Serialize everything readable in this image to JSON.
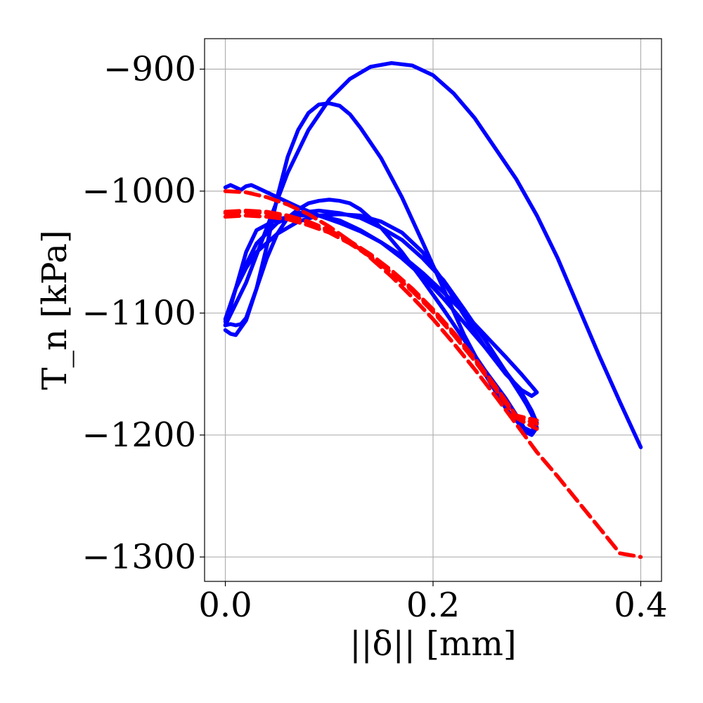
{
  "chart_data": {
    "type": "line",
    "title": "",
    "xlabel": "||δ|| [mm]",
    "ylabel": "T_n [kPa]",
    "xlim": [
      -0.02,
      0.42
    ],
    "ylim": [
      -1320,
      -875
    ],
    "xticks": [
      0.0,
      0.2,
      0.4
    ],
    "xtick_labels": [
      "0.0",
      "0.2",
      "0.4"
    ],
    "yticks": [
      -900,
      -1000,
      -1100,
      -1200,
      -1300
    ],
    "ytick_labels": [
      "−900",
      "−1000",
      "−1100",
      "−1200",
      "−1300"
    ],
    "grid": true,
    "legend": "none",
    "colors": {
      "model": "#0000ff",
      "reference": "#ff0000"
    },
    "series": [
      {
        "name": "model-response-1",
        "color": "#0000ff",
        "style": "solid",
        "x": [
          0.0,
          0.005,
          0.01,
          0.015,
          0.02,
          0.025,
          0.03,
          0.05,
          0.07,
          0.09,
          0.11,
          0.13,
          0.15,
          0.17,
          0.19,
          0.21,
          0.23,
          0.25,
          0.27,
          0.285,
          0.295,
          0.3,
          0.295,
          0.285,
          0.27,
          0.25,
          0.23,
          0.21,
          0.19,
          0.17,
          0.15,
          0.13,
          0.11,
          0.09,
          0.07,
          0.05,
          0.03,
          0.02,
          0.01,
          0.005,
          0.0
        ],
        "y": [
          -997,
          -995,
          -997,
          -999,
          -996,
          -995,
          -997,
          -1005,
          -1013,
          -1020,
          -1026,
          -1033,
          -1042,
          -1053,
          -1067,
          -1083,
          -1100,
          -1118,
          -1136,
          -1150,
          -1160,
          -1165,
          -1168,
          -1163,
          -1150,
          -1128,
          -1102,
          -1074,
          -1050,
          -1034,
          -1025,
          -1020,
          -1019,
          -1020,
          -1025,
          -1035,
          -1050,
          -1063,
          -1080,
          -1093,
          -1107
        ]
      },
      {
        "name": "model-response-2",
        "color": "#0000ff",
        "style": "solid",
        "x": [
          0.0,
          0.005,
          0.01,
          0.02,
          0.03,
          0.04,
          0.05,
          0.06,
          0.07,
          0.08,
          0.09,
          0.1,
          0.11,
          0.12,
          0.13,
          0.15,
          0.17,
          0.19,
          0.21,
          0.23,
          0.25,
          0.27,
          0.285,
          0.295,
          0.3,
          0.295,
          0.285,
          0.27,
          0.25,
          0.23,
          0.21,
          0.19,
          0.17,
          0.15,
          0.13,
          0.11,
          0.09,
          0.07,
          0.05,
          0.03,
          0.02,
          0.01,
          0.0
        ],
        "y": [
          -1114,
          -1117,
          -1118,
          -1106,
          -1080,
          -1045,
          -1005,
          -972,
          -950,
          -936,
          -929,
          -928,
          -930,
          -937,
          -948,
          -973,
          -1005,
          -1042,
          -1080,
          -1118,
          -1150,
          -1178,
          -1193,
          -1197,
          -1190,
          -1180,
          -1165,
          -1148,
          -1128,
          -1108,
          -1088,
          -1070,
          -1055,
          -1042,
          -1032,
          -1024,
          -1020,
          -1020,
          -1023,
          -1032,
          -1050,
          -1080,
          -1110
        ]
      },
      {
        "name": "model-response-3",
        "color": "#0000ff",
        "style": "solid",
        "x": [
          0.0,
          0.005,
          0.01,
          0.015,
          0.02,
          0.03,
          0.04,
          0.05,
          0.06,
          0.07,
          0.08,
          0.09,
          0.1,
          0.11,
          0.12,
          0.13,
          0.15,
          0.17,
          0.19,
          0.21,
          0.23,
          0.25,
          0.27,
          0.285,
          0.29,
          0.295,
          0.3,
          0.295,
          0.29,
          0.285,
          0.27,
          0.25,
          0.23,
          0.21,
          0.19,
          0.17,
          0.15,
          0.13,
          0.11,
          0.09,
          0.07,
          0.05,
          0.03,
          0.02,
          0.01,
          0.0
        ],
        "y": [
          -1110,
          -1109,
          -1110,
          -1109,
          -1104,
          -1080,
          -1055,
          -1035,
          -1022,
          -1015,
          -1010,
          -1008,
          -1007,
          -1008,
          -1010,
          -1015,
          -1030,
          -1050,
          -1073,
          -1097,
          -1122,
          -1147,
          -1170,
          -1190,
          -1198,
          -1200,
          -1194,
          -1183,
          -1175,
          -1168,
          -1148,
          -1122,
          -1097,
          -1073,
          -1055,
          -1040,
          -1030,
          -1022,
          -1018,
          -1016,
          -1018,
          -1026,
          -1043,
          -1060,
          -1080,
          -1105
        ]
      },
      {
        "name": "model-response-4",
        "color": "#0000ff",
        "style": "solid",
        "x": [
          0.0,
          0.02,
          0.04,
          0.06,
          0.08,
          0.1,
          0.12,
          0.14,
          0.16,
          0.18,
          0.2,
          0.22,
          0.24,
          0.26,
          0.28,
          0.3,
          0.32,
          0.34,
          0.36,
          0.38,
          0.4
        ],
        "y": [
          -1110,
          -1075,
          -1030,
          -985,
          -950,
          -925,
          -908,
          -898,
          -895,
          -897,
          -905,
          -920,
          -940,
          -965,
          -990,
          -1020,
          -1055,
          -1095,
          -1135,
          -1173,
          -1210
        ]
      },
      {
        "name": "reference-1",
        "color": "#ff0000",
        "style": "dashed",
        "x": [
          0.0,
          0.02,
          0.04,
          0.06,
          0.08,
          0.1,
          0.12,
          0.14,
          0.16,
          0.18,
          0.2,
          0.22,
          0.24,
          0.26,
          0.28,
          0.3,
          0.32,
          0.34,
          0.36,
          0.38,
          0.4
        ],
        "y": [
          -1000,
          -1001,
          -1005,
          -1011,
          -1019,
          -1029,
          -1041,
          -1055,
          -1070,
          -1087,
          -1105,
          -1125,
          -1146,
          -1168,
          -1191,
          -1214,
          -1234,
          -1255,
          -1276,
          -1297,
          -1300
        ]
      },
      {
        "name": "reference-2",
        "color": "#ff0000",
        "style": "dashed",
        "x": [
          0.0,
          0.02,
          0.04,
          0.06,
          0.08,
          0.1,
          0.12,
          0.14,
          0.16,
          0.18,
          0.2,
          0.22,
          0.24,
          0.26,
          0.28,
          0.3
        ],
        "y": [
          -1017,
          -1016,
          -1017,
          -1020,
          -1025,
          -1032,
          -1041,
          -1052,
          -1065,
          -1080,
          -1097,
          -1116,
          -1137,
          -1160,
          -1184,
          -1188
        ]
      },
      {
        "name": "reference-3",
        "color": "#ff0000",
        "style": "dashed",
        "x": [
          0.0,
          0.02,
          0.04,
          0.06,
          0.08,
          0.1,
          0.12,
          0.14,
          0.16,
          0.18,
          0.2,
          0.22,
          0.24,
          0.26,
          0.28,
          0.3
        ],
        "y": [
          -1021,
          -1020,
          -1021,
          -1023,
          -1028,
          -1034,
          -1043,
          -1054,
          -1067,
          -1082,
          -1099,
          -1118,
          -1139,
          -1162,
          -1186,
          -1195
        ]
      },
      {
        "name": "reference-4",
        "color": "#ff0000",
        "style": "dashed",
        "x": [
          0.0,
          0.02,
          0.04,
          0.06,
          0.08,
          0.1,
          0.12,
          0.14,
          0.16,
          0.18,
          0.2,
          0.22,
          0.24,
          0.26,
          0.28,
          0.3
        ],
        "y": [
          -1018,
          -1017,
          -1018,
          -1021,
          -1026,
          -1033,
          -1042,
          -1053,
          -1066,
          -1081,
          -1098,
          -1117,
          -1138,
          -1161,
          -1185,
          -1191
        ]
      }
    ]
  }
}
